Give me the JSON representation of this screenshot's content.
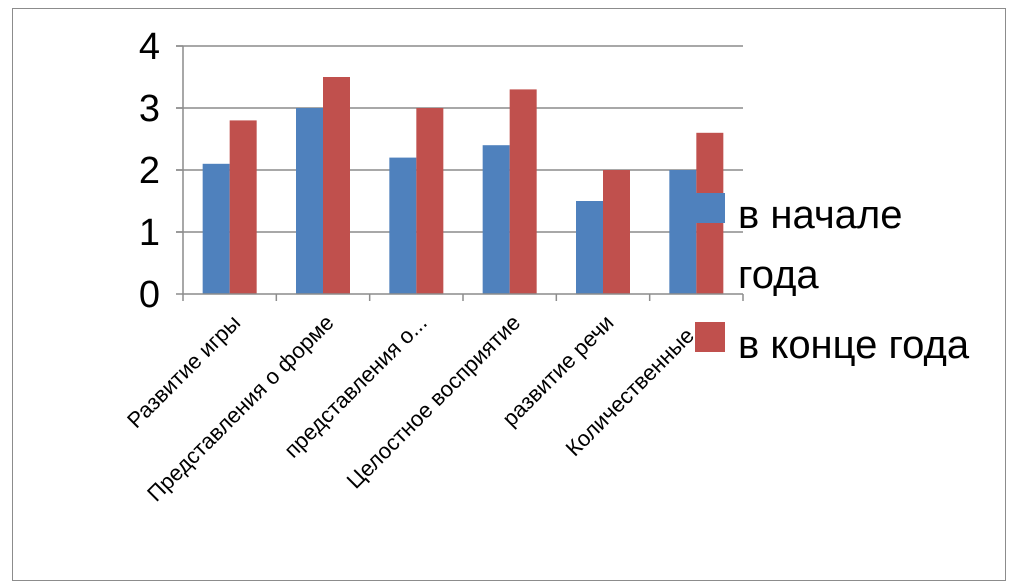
{
  "chart_data": {
    "type": "bar",
    "categories": [
      "Развитие игры",
      "Представления о форме",
      "представления о...",
      "Целостное восприятие",
      "развитие речи",
      "Количественные..."
    ],
    "series": [
      {
        "name": "в начале года",
        "color": "#4f81bd",
        "values": [
          2.1,
          3.0,
          2.2,
          2.4,
          1.5,
          2.0
        ]
      },
      {
        "name": "в конце года",
        "color": "#c0504d",
        "values": [
          2.8,
          3.5,
          3.0,
          3.3,
          2.0,
          2.6
        ]
      }
    ],
    "ylim": [
      0,
      4
    ],
    "yticks": [
      0,
      1,
      2,
      3,
      4
    ],
    "grid": true,
    "legend_position": "right",
    "legend_lines": [
      [
        "в начале",
        "года"
      ],
      [
        "в конце года"
      ]
    ]
  }
}
